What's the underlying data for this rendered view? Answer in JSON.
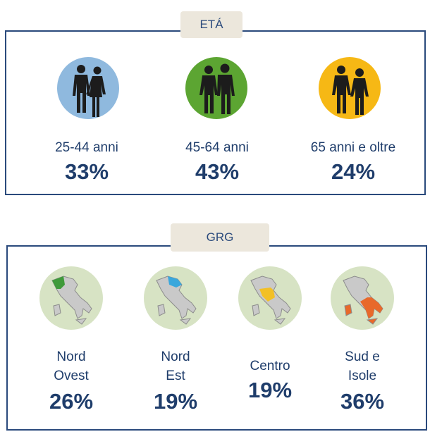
{
  "age": {
    "title": "ETÁ",
    "groups": [
      {
        "label": "25-44 anni",
        "value": "33%",
        "color": "#8fb9de",
        "icon": "couple-young-icon"
      },
      {
        "label": "45-64 anni",
        "value": "43%",
        "color": "#5ca532",
        "icon": "couple-middle-icon"
      },
      {
        "label": "65 anni e oltre",
        "value": "24%",
        "color": "#f6b815",
        "icon": "couple-elderly-icon"
      }
    ]
  },
  "region": {
    "title": "GRG",
    "groups": [
      {
        "line1": "Nord",
        "line2": "Ovest",
        "value": "26%",
        "highlight": "#3f9a3a",
        "icon": "italy-map-icon"
      },
      {
        "line1": "Nord",
        "line2": "Est",
        "value": "19%",
        "highlight": "#3aa7dc",
        "icon": "italy-map-icon"
      },
      {
        "line1": "Centro",
        "line2": "",
        "value": "19%",
        "highlight": "#f2c026",
        "icon": "italy-map-icon"
      },
      {
        "line1": "Sud e",
        "line2": "Isole",
        "value": "36%",
        "highlight": "#e8692b",
        "icon": "italy-map-icon"
      }
    ]
  }
}
